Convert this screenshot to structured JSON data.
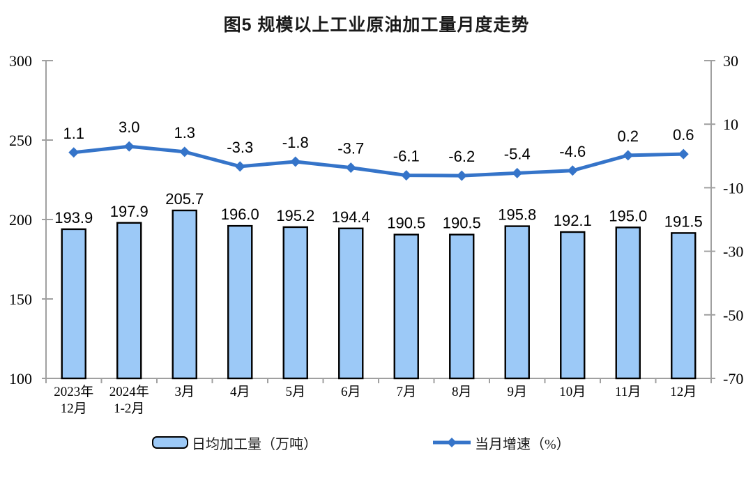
{
  "title": "图5 规模以上工业原油加工量月度走势",
  "chart_data": {
    "type": "bar",
    "subtype": "bar+line combo, dual axis",
    "title": "图5 规模以上工业原油加工量月度走势",
    "categories": [
      "2023年\n12月",
      "2024年\n1-2月",
      "3月",
      "4月",
      "5月",
      "6月",
      "7月",
      "8月",
      "9月",
      "10月",
      "11月",
      "12月"
    ],
    "series": [
      {
        "name": "日均加工量（万吨）",
        "type": "bar",
        "axis": "left",
        "values": [
          193.9,
          197.9,
          205.7,
          196.0,
          195.2,
          194.4,
          190.5,
          190.5,
          195.8,
          192.1,
          195.0,
          191.5
        ],
        "fill": "#9CC9F7",
        "border": "#000000"
      },
      {
        "name": "当月增速（%）",
        "type": "line",
        "axis": "right",
        "values": [
          1.1,
          3.0,
          1.3,
          -3.3,
          -1.8,
          -3.7,
          -6.1,
          -6.2,
          -5.4,
          -4.6,
          0.2,
          0.6
        ],
        "color": "#3574C9"
      }
    ],
    "left_axis": {
      "min": 100,
      "max": 300,
      "ticks": [
        300,
        250,
        200,
        150,
        100
      ]
    },
    "right_axis": {
      "min": -70,
      "max": 30,
      "ticks": [
        30,
        10,
        -10,
        -30,
        -50,
        -70
      ]
    },
    "grid": false,
    "data_labels": true,
    "legend_position": "bottom",
    "axis_color": "#A0A0A0",
    "label_decimals": 1
  }
}
